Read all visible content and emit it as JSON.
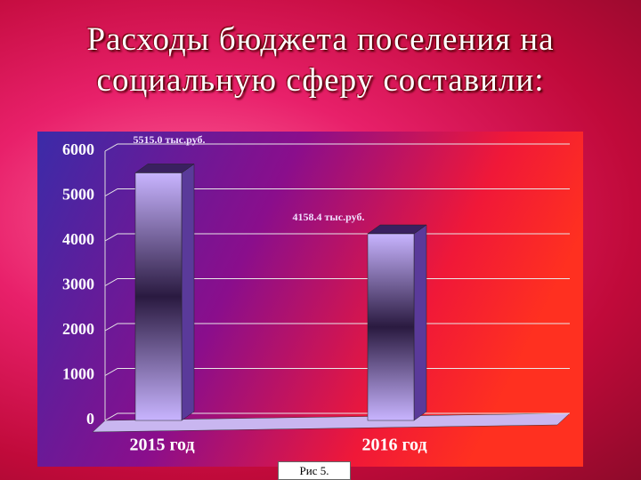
{
  "chart_data": {
    "type": "bar",
    "title": "Расходы бюджета поселения на социальную сферу составили:",
    "categories": [
      "2015 год",
      "2016 год"
    ],
    "values": [
      5515.0,
      4158.4
    ],
    "value_labels": [
      "5515.0 тыс.руб.",
      "4158.4 тыс.руб."
    ],
    "color": "#b9a3f0",
    "ylim": [
      0,
      6000
    ],
    "yticks": [
      0,
      1000,
      2000,
      3000,
      4000,
      5000,
      6000
    ],
    "grid": true,
    "caption": "Рис 5."
  }
}
